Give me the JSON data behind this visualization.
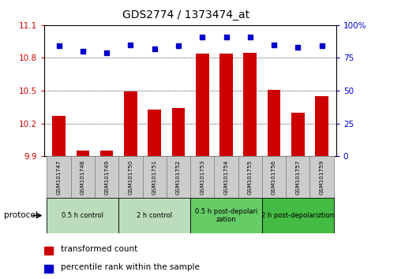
{
  "title": "GDS2774 / 1373474_at",
  "samples": [
    "GSM101747",
    "GSM101748",
    "GSM101749",
    "GSM101750",
    "GSM101751",
    "GSM101752",
    "GSM101753",
    "GSM101754",
    "GSM101755",
    "GSM101756",
    "GSM101757",
    "GSM101759"
  ],
  "bar_values": [
    10.27,
    9.95,
    9.95,
    10.49,
    10.33,
    10.34,
    10.84,
    10.84,
    10.85,
    10.51,
    10.3,
    10.45
  ],
  "dot_values": [
    84,
    80,
    79,
    85,
    82,
    84,
    91,
    91,
    91,
    85,
    83,
    84
  ],
  "ylim_left": [
    9.9,
    11.1
  ],
  "ylim_right": [
    0,
    100
  ],
  "yticks_left": [
    9.9,
    10.2,
    10.5,
    10.8,
    11.1
  ],
  "yticks_right": [
    0,
    25,
    50,
    75,
    100
  ],
  "ytick_labels_left": [
    "9.9",
    "10.2",
    "10.5",
    "10.8",
    "11.1"
  ],
  "ytick_labels_right": [
    "0",
    "25",
    "50",
    "75",
    "100%"
  ],
  "bar_color": "#cc0000",
  "dot_color": "#0000cc",
  "groups": [
    {
      "label": "0.5 h control",
      "start": 0,
      "end": 3,
      "color": "#bbddbb"
    },
    {
      "label": "2 h control",
      "start": 3,
      "end": 6,
      "color": "#bbddbb"
    },
    {
      "label": "0.5 h post-depolarization",
      "start": 6,
      "end": 9,
      "color": "#66cc66"
    },
    {
      "label": "2 h post-depolariztion",
      "start": 9,
      "end": 12,
      "color": "#44bb44"
    }
  ],
  "sample_box_color": "#cccccc",
  "sample_box_edge_color": "#888888"
}
